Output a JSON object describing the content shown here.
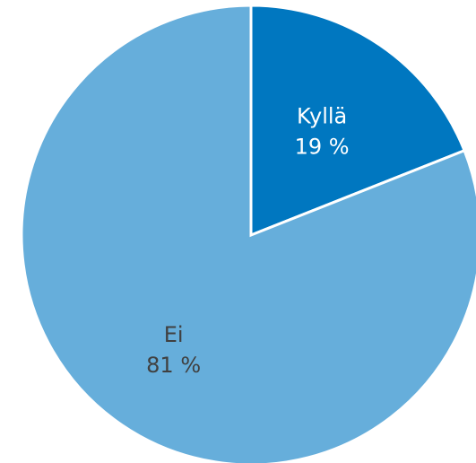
{
  "chart_data": {
    "type": "pie",
    "title": "",
    "start_angle_deg": 0,
    "direction": "clockwise",
    "slices": [
      {
        "name": "Kyllä",
        "value": 19,
        "value_label": "19 %",
        "color": "#0077C0",
        "label_color": "#FFFFFF"
      },
      {
        "name": "Ei",
        "value": 81,
        "value_label": "81 %",
        "color": "#66AEDB",
        "label_color": "#404040"
      }
    ]
  }
}
